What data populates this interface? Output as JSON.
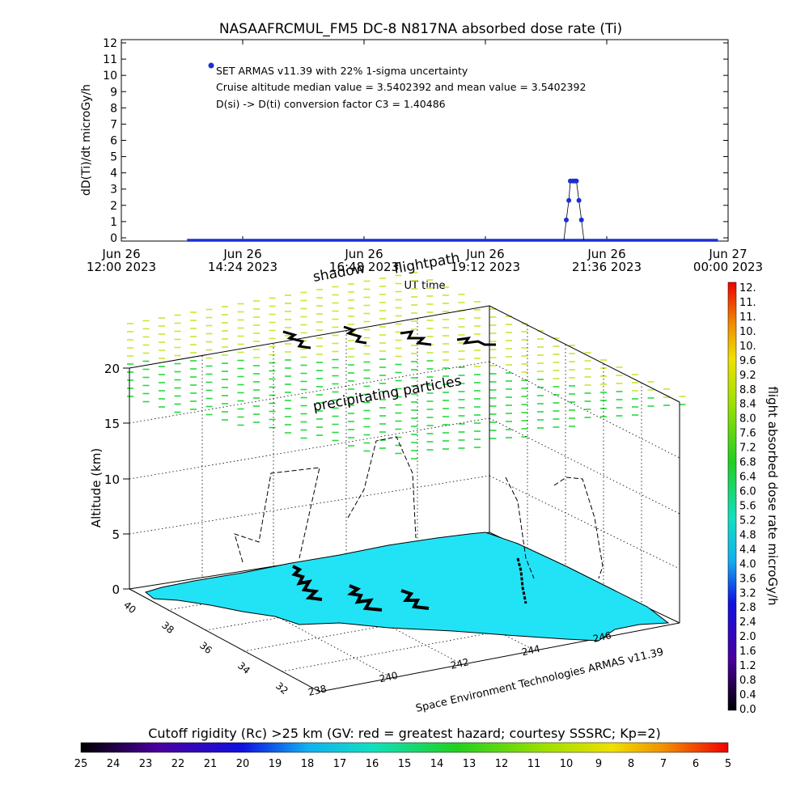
{
  "chart_data": [
    {
      "type": "scatter",
      "title": "NASAAFRCMUL_FM5 DC-8   N817NA absorbed dose rate (Ti)",
      "ylabel": "dD(Ti)/dt microGy/h",
      "xlabel": "UT time",
      "ylim": [
        0,
        12
      ],
      "yticks": [
        "0",
        "1",
        "2",
        "3",
        "4",
        "5",
        "6",
        "7",
        "8",
        "9",
        "10",
        "11",
        "12"
      ],
      "xticks": [
        {
          "line1": "Jun 26",
          "line2": "12:00 2023"
        },
        {
          "line1": "Jun 26",
          "line2": "14:24 2023"
        },
        {
          "line1": "Jun 26",
          "line2": "16:48 2023"
        },
        {
          "line1": "Jun 26",
          "line2": "19:12 2023"
        },
        {
          "line1": "Jun 26",
          "line2": "21:36 2023"
        },
        {
          "line1": "Jun 27",
          "line2": "00:00 2023"
        }
      ],
      "xrange_hours": [
        0,
        12
      ],
      "baseline_hours": [
        1.3,
        11.8
      ],
      "baseline_value": 0,
      "spike_hours": [
        8.8,
        8.85,
        8.88,
        8.93,
        8.97,
        9.0,
        9.05,
        9.1
      ],
      "spike_values": [
        1.1,
        2.3,
        3.5,
        3.5,
        3.5,
        3.5,
        2.3,
        1.1
      ],
      "legend_marker": "SET ARMAS v11.39 with 22% 1-sigma uncertainty",
      "annotations": [
        "Cruise altitude median value = 3.5402392 and mean value = 3.5402392",
        "D(si) -> D(ti) conversion factor C3 = 1.40486"
      ],
      "series_color": "#1a2fd6",
      "grid": false
    },
    {
      "type": "3d-flightpath",
      "labels": {
        "flightpath": "flightpath",
        "shadow": "shadow",
        "precip": "precipitating particles",
        "credit": "Space Environment Technologies ARMAS v11.39",
        "zlabel": "Altitude (km)"
      },
      "zticks": [
        "0",
        "5",
        "10",
        "15",
        "20"
      ],
      "lat_ticks": [
        "40",
        "38",
        "36",
        "34",
        "32"
      ],
      "lon_ticks": [
        "238",
        "240",
        "242",
        "244",
        "246"
      ],
      "land_color": "#22e3f5",
      "precip_color_top": "#c8e632",
      "precip_color_bottom": "#28d840"
    },
    {
      "type": "colorbar",
      "label": "flight absorbed dose rate microGy/h",
      "ticks": [
        "12.",
        "11.",
        "11.",
        "10.",
        "10.",
        "9.6",
        "9.2",
        "8.8",
        "8.4",
        "8.0",
        "7.6",
        "7.2",
        "6.8",
        "6.4",
        "6.0",
        "5.6",
        "5.2",
        "4.8",
        "4.4",
        "4.0",
        "3.6",
        "3.2",
        "2.8",
        "2.4",
        "2.0",
        "1.6",
        "1.2",
        "0.8",
        "0.4",
        "0.0"
      ]
    },
    {
      "type": "colorbar",
      "label": "Cutoff rigidity (Rc) >25 km (GV: red = greatest hazard; courtesy SSSRC; Kp=2)",
      "ticks": [
        "25",
        "24",
        "23",
        "22",
        "21",
        "20",
        "19",
        "18",
        "17",
        "16",
        "15",
        "14",
        "13",
        "12",
        "11",
        "10",
        "9",
        "8",
        "7",
        "6",
        "5"
      ]
    }
  ]
}
